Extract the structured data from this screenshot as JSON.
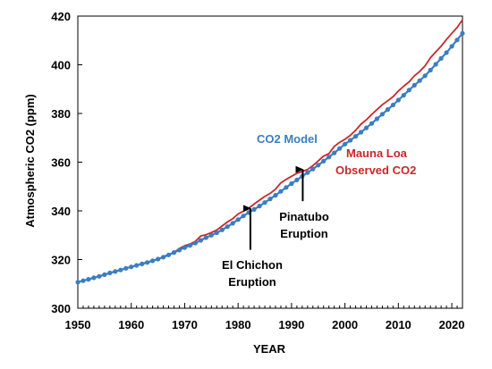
{
  "colors": {
    "model": "#3a7dc2",
    "observed": "#c8282b",
    "axis": "#000000",
    "arrow": "#000000"
  },
  "chart_data": {
    "type": "line",
    "xlabel": "YEAR",
    "ylabel": "Atmospheric CO2 (ppm)",
    "xlim": [
      1950,
      2022
    ],
    "ylim": [
      300,
      420
    ],
    "xticks": [
      1950,
      1960,
      1970,
      1980,
      1990,
      2000,
      2010,
      2020
    ],
    "yticks": [
      300,
      320,
      340,
      360,
      380,
      400,
      420
    ],
    "grid": false,
    "series": [
      {
        "name": "CO2 Model",
        "color": "#3a7dc2",
        "marker": "circle",
        "x": [
          1950,
          1951,
          1952,
          1953,
          1954,
          1955,
          1956,
          1957,
          1958,
          1959,
          1960,
          1961,
          1962,
          1963,
          1964,
          1965,
          1966,
          1967,
          1968,
          1969,
          1970,
          1971,
          1972,
          1973,
          1974,
          1975,
          1976,
          1977,
          1978,
          1979,
          1980,
          1981,
          1982,
          1983,
          1984,
          1985,
          1986,
          1987,
          1988,
          1989,
          1990,
          1991,
          1992,
          1993,
          1994,
          1995,
          1996,
          1997,
          1998,
          1999,
          2000,
          2001,
          2002,
          2003,
          2004,
          2005,
          2006,
          2007,
          2008,
          2009,
          2010,
          2011,
          2012,
          2013,
          2014,
          2015,
          2016,
          2017,
          2018,
          2019,
          2020,
          2021,
          2022
        ],
        "y": [
          310.7,
          311.3,
          311.9,
          312.5,
          313.1,
          313.8,
          314.5,
          315.1,
          315.7,
          316.4,
          317.0,
          317.6,
          318.2,
          318.8,
          319.5,
          320.2,
          321.0,
          321.9,
          322.9,
          323.9,
          324.9,
          325.8,
          326.8,
          327.9,
          329.0,
          330.0,
          331.0,
          332.2,
          333.5,
          334.9,
          336.4,
          337.9,
          339.3,
          340.6,
          342.0,
          343.4,
          344.9,
          346.4,
          348.0,
          349.6,
          351.2,
          352.7,
          354.2,
          355.7,
          357.2,
          358.8,
          360.4,
          362.1,
          363.8,
          365.6,
          367.4,
          369.0,
          370.6,
          372.3,
          374.1,
          375.9,
          377.8,
          379.7,
          381.6,
          383.5,
          385.5,
          387.5,
          389.6,
          391.6,
          393.5,
          395.5,
          397.8,
          400.2,
          402.6,
          405.0,
          407.6,
          410.2,
          412.9
        ]
      },
      {
        "name": "Mauna Loa Observed CO2",
        "color": "#c8282b",
        "marker": "none",
        "x": [
          1950,
          1951,
          1952,
          1953,
          1954,
          1955,
          1956,
          1957,
          1958,
          1959,
          1960,
          1961,
          1962,
          1963,
          1964,
          1965,
          1966,
          1967,
          1968,
          1969,
          1970,
          1971,
          1972,
          1973,
          1974,
          1975,
          1976,
          1977,
          1978,
          1979,
          1980,
          1981,
          1982,
          1983,
          1984,
          1985,
          1986,
          1987,
          1988,
          1989,
          1990,
          1991,
          1992,
          1993,
          1994,
          1995,
          1996,
          1997,
          1998,
          1999,
          2000,
          2001,
          2002,
          2003,
          2004,
          2005,
          2006,
          2007,
          2008,
          2009,
          2010,
          2011,
          2012,
          2013,
          2014,
          2015,
          2016,
          2017,
          2018,
          2019,
          2020,
          2021,
          2022
        ],
        "y": [
          310.7,
          311.3,
          311.9,
          312.5,
          313.1,
          313.8,
          314.5,
          315.1,
          315.7,
          316.5,
          317.0,
          317.6,
          318.3,
          318.9,
          319.6,
          320.0,
          321.3,
          322.0,
          322.9,
          324.5,
          325.7,
          326.3,
          327.5,
          329.7,
          330.2,
          331.1,
          332.1,
          333.8,
          335.4,
          336.8,
          338.7,
          339.9,
          341.1,
          342.8,
          344.4,
          345.9,
          347.2,
          348.9,
          351.5,
          352.9,
          354.2,
          355.4,
          356.2,
          357.0,
          358.6,
          360.5,
          362.5,
          363.5,
          366.5,
          368.1,
          369.4,
          371.0,
          373.1,
          375.6,
          377.4,
          379.6,
          381.6,
          383.6,
          385.2,
          386.9,
          389.2,
          391.2,
          393.0,
          395.5,
          397.3,
          399.6,
          402.9,
          405.3,
          407.6,
          410.4,
          412.9,
          415.3,
          418.5
        ]
      }
    ],
    "series_labels": [
      {
        "text": "CO2 Model",
        "color": "#3a7dc2"
      },
      {
        "text": "Mauna Loa",
        "color": "#c8282b"
      },
      {
        "text": "Observed CO2",
        "color": "#c8282b"
      }
    ],
    "annotations": [
      {
        "lines": [
          "El Chichon",
          "Eruption"
        ],
        "arrow_x": 1982.3,
        "arrow_y_from": 324,
        "arrow_y_to": 341
      },
      {
        "lines": [
          "Pinatubo",
          "Eruption"
        ],
        "arrow_x": 1992.1,
        "arrow_y_from": 344,
        "arrow_y_to": 357
      }
    ]
  }
}
